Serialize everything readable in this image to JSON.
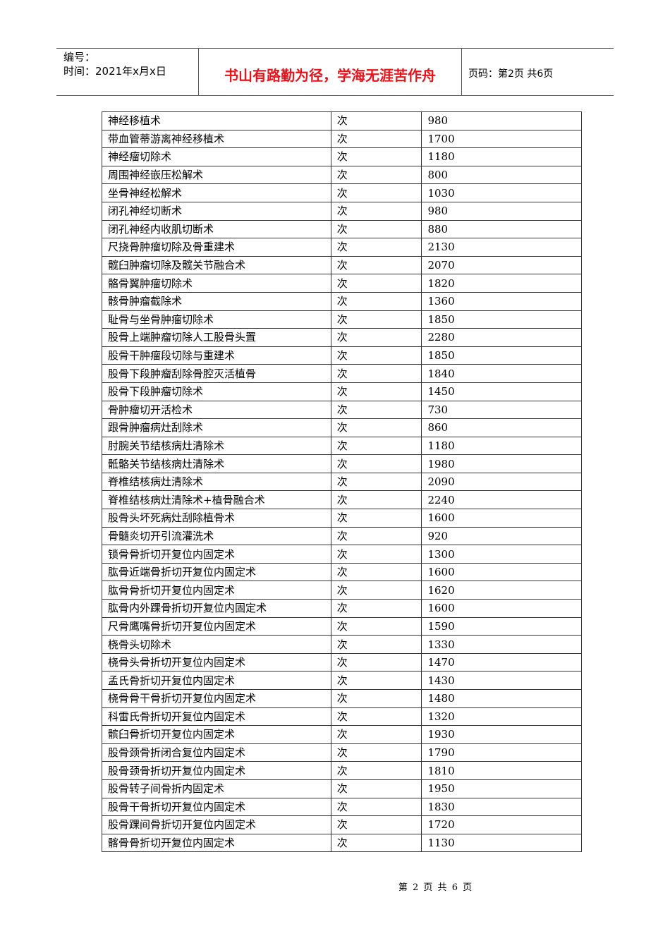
{
  "header": {
    "number_label": "编号：",
    "date_label": "时间：2021年x月x日",
    "motto": "书山有路勤为径，学海无涯苦作舟",
    "page_info": "页码：第2页  共6页",
    "motto_color": "#e8141b"
  },
  "table": {
    "rows": [
      [
        "神经移植术",
        "次",
        "980"
      ],
      [
        "带血管蒂游离神经移植术",
        "次",
        "1700"
      ],
      [
        "神经瘤切除术",
        "次",
        "1180"
      ],
      [
        "周围神经嵌压松解术",
        "次",
        "800"
      ],
      [
        "坐骨神经松解术",
        "次",
        "1030"
      ],
      [
        "闭孔神经切断术",
        "次",
        "980"
      ],
      [
        "闭孔神经内收肌切断术",
        "次",
        "880"
      ],
      [
        "尺挠骨肿瘤切除及骨重建术",
        "次",
        "2130"
      ],
      [
        "髋臼肿瘤切除及髋关节融合术",
        "次",
        "2070"
      ],
      [
        "骼骨翼肿瘤切除术",
        "次",
        "1820"
      ],
      [
        "骸骨肿瘤截除术",
        "次",
        "1360"
      ],
      [
        "耻骨与坐骨肿瘤切除术",
        "次",
        "1850"
      ],
      [
        "股骨上端肿瘤切除人工股骨头置",
        "次",
        "2280"
      ],
      [
        "股骨干肿瘤段切除与重建术",
        "次",
        "1850"
      ],
      [
        "股骨下段肿瘤刮除骨腔灭活植骨",
        "次",
        "1840"
      ],
      [
        "股骨下段肿瘤切除术",
        "次",
        "1450"
      ],
      [
        "骨肿瘤切开活检术",
        "次",
        "730"
      ],
      [
        "跟骨肿瘤病灶刮除术",
        "次",
        "860"
      ],
      [
        "肘腕关节结核病灶清除术",
        "次",
        "1180"
      ],
      [
        "骶骼关节结核病灶清除术",
        "次",
        "1980"
      ],
      [
        "脊椎结核病灶清除术",
        "次",
        "2090"
      ],
      [
        "脊椎结核病灶清除术+植骨融合术",
        "次",
        "2240"
      ],
      [
        "股骨头坏死病灶刮除植骨术",
        "次",
        "1600"
      ],
      [
        "骨髓炎切开引流灌洗术",
        "次",
        "920"
      ],
      [
        "锁骨骨折切开复位内固定术",
        "次",
        "1300"
      ],
      [
        "肱骨近端骨折切开复位内固定术",
        "次",
        "1600"
      ],
      [
        "肱骨骨折切开复位内固定术",
        "次",
        "1620"
      ],
      [
        "肱骨内外踝骨折切开复位内固定术",
        "次",
        "1600"
      ],
      [
        "尺骨鹰嘴骨折切开复位内固定术",
        "次",
        "1590"
      ],
      [
        "桡骨头切除术",
        "次",
        "1330"
      ],
      [
        "桡骨头骨折切开复位内固定术",
        "次",
        "1470"
      ],
      [
        "孟氏骨折切开复位内固定术",
        "次",
        "1430"
      ],
      [
        "桡骨骨干骨折切开复位内固定术",
        "次",
        "1480"
      ],
      [
        "科雷氏骨折切开复位内固定术",
        "次",
        "1320"
      ],
      [
        "髌臼骨折切开复位内固定术",
        "次",
        "1930"
      ],
      [
        "股骨颈骨折闭合复位内固定术",
        "次",
        "1790"
      ],
      [
        "股骨颈骨折切开复位内固定术",
        "次",
        "1810"
      ],
      [
        "股骨转子间骨折内固定术",
        "次",
        "1950"
      ],
      [
        "股骨干骨折切开复位内固定术",
        "次",
        "1830"
      ],
      [
        "股骨踝间骨折切开复位内固定术",
        "次",
        "1720"
      ],
      [
        "髂骨骨折切开复位内固定术",
        "次",
        "1130"
      ]
    ]
  },
  "footer": {
    "text": "第 2 页 共 6 页"
  }
}
